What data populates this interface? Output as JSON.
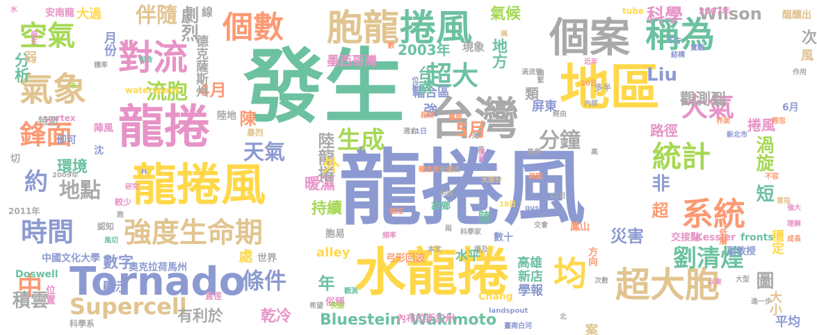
{
  "palette": [
    "#8c9ad1",
    "#6cc1a1",
    "#ffd84a",
    "#e793c7",
    "#a9a9a9",
    "#e1c490",
    "#fb9a73",
    "#a6d854"
  ],
  "words": [
    {
      "text": "龍捲風",
      "color": "#8c9ad1"
    },
    {
      "text": "發生",
      "color": "#6cc1a1"
    },
    {
      "text": "水龍捲",
      "color": "#ffd84a"
    },
    {
      "text": "地區",
      "color": "#ffd84a"
    },
    {
      "text": "台灣",
      "color": "#a9a9a9"
    },
    {
      "text": "龍捲",
      "color": "#e793c7"
    },
    {
      "text": "龍捲風",
      "color": "#ffd84a"
    },
    {
      "text": "Tornado",
      "color": "#8c9ad1"
    },
    {
      "text": "個案",
      "color": "#a9a9a9"
    },
    {
      "text": "胞龍",
      "color": "#e1c490"
    },
    {
      "text": "捲風",
      "color": "#6cc1a1"
    },
    {
      "text": "個數",
      "color": "#fb9a73"
    },
    {
      "text": "氣象",
      "color": "#e1c490"
    },
    {
      "text": "對流",
      "color": "#e793c7"
    },
    {
      "text": "空氣",
      "color": "#a6d854"
    },
    {
      "text": "稱為",
      "color": "#6cc1a1"
    },
    {
      "text": "超大胞",
      "color": "#e1c490"
    },
    {
      "text": "系統",
      "color": "#fb9a73"
    },
    {
      "text": "統計",
      "color": "#a6d854"
    },
    {
      "text": "大氣",
      "color": "#e793c7"
    },
    {
      "text": "強度生命期",
      "color": "#e1c490"
    },
    {
      "text": "時間",
      "color": "#8c9ad1"
    },
    {
      "text": "鋒面",
      "color": "#fb9a73"
    },
    {
      "text": "超大",
      "color": "#6cc1a1"
    },
    {
      "text": "分鐘",
      "color": "#a9a9a9"
    },
    {
      "text": "條件",
      "color": "#8c9ad1"
    },
    {
      "text": "劉清煌",
      "color": "#6cc1a1"
    },
    {
      "text": "均",
      "color": "#ffd84a"
    },
    {
      "text": "天氣",
      "color": "#8c9ad1"
    },
    {
      "text": "地點",
      "color": "#a9a9a9"
    },
    {
      "text": "約",
      "color": "#8c9ad1"
    },
    {
      "text": "生成",
      "color": "#a6d854"
    },
    {
      "text": "流胞",
      "color": "#a6d854"
    },
    {
      "text": "伴隨",
      "color": "#e1c490"
    },
    {
      "text": "科學",
      "color": "#e793c7"
    },
    {
      "text": "Supercell",
      "color": "#e1c490"
    },
    {
      "text": "渦旋",
      "color": "#a6d854"
    },
    {
      "text": "中",
      "color": "#fb9a73"
    },
    {
      "text": "5月",
      "color": "#fb9a73"
    },
    {
      "text": "4月",
      "color": "#fb9a73"
    },
    {
      "text": "短",
      "color": "#6cc1a1"
    },
    {
      "text": "Liu",
      "color": "#8c9ad1"
    },
    {
      "text": "積雲",
      "color": "#a9a9a9"
    },
    {
      "text": "災害",
      "color": "#8c9ad1"
    },
    {
      "text": "年",
      "color": "#6cc1a1"
    },
    {
      "text": "圖",
      "color": "#a9a9a9"
    },
    {
      "text": "超",
      "color": "#fb9a73"
    },
    {
      "text": "觀測到",
      "color": "#a9a9a9"
    },
    {
      "text": "非",
      "color": "#8c9ad1"
    },
    {
      "text": "Wilson",
      "color": "#a9a9a9"
    },
    {
      "text": "Bluestein",
      "color": "#6cc1a1"
    },
    {
      "text": "Wakimoto",
      "color": "#6cc1a1"
    },
    {
      "text": "氣候",
      "color": "#a6d854"
    },
    {
      "text": "暖濕",
      "color": "#e793c7"
    },
    {
      "text": "數字",
      "color": "#8c9ad1"
    },
    {
      "text": "劇烈",
      "color": "#a9a9a9"
    },
    {
      "text": "環境",
      "color": "#6cc1a1"
    },
    {
      "text": "持續",
      "color": "#a6d854"
    },
    {
      "text": "乾冷",
      "color": "#e793c7"
    },
    {
      "text": "大小",
      "color": "#e1c490"
    },
    {
      "text": "有利於",
      "color": "#a9a9a9"
    },
    {
      "text": "2003年",
      "color": "#6cc1a1"
    },
    {
      "text": "捲風",
      "color": "#e793c7"
    },
    {
      "text": "地方",
      "color": "#6cc1a1"
    },
    {
      "text": "alley",
      "color": "#ffd84a"
    },
    {
      "text": "陸龍捲",
      "color": "#a9a9a9"
    },
    {
      "text": "外",
      "color": "#ffd84a"
    },
    {
      "text": "陳",
      "color": "#fb9a73"
    },
    {
      "text": "類",
      "color": "#a9a9a9"
    },
    {
      "text": "高雄",
      "color": "#6cc1a1"
    },
    {
      "text": "新店",
      "color": "#6cc1a1"
    },
    {
      "text": "學報",
      "color": "#8c9ad1"
    },
    {
      "text": "案例",
      "color": "#e1c490"
    },
    {
      "text": "穩定",
      "color": "#ffd84a"
    },
    {
      "text": "路徑",
      "color": "#e793c7"
    },
    {
      "text": "輻合區",
      "color": "#8c9ad1"
    },
    {
      "text": "台南",
      "color": "#6cc1a1"
    },
    {
      "text": "強",
      "color": "#8c9ad1"
    },
    {
      "text": "處",
      "color": "#ffd84a"
    },
    {
      "text": "顯示",
      "color": "#8c9ad1"
    },
    {
      "text": "平均",
      "color": "#8c9ad1"
    },
    {
      "text": "屏東",
      "color": "#8c9ad1"
    },
    {
      "text": "6月",
      "color": "#8c9ad1"
    },
    {
      "text": "月份",
      "color": "#8c9ad1"
    },
    {
      "text": "分析",
      "color": "#6cc1a1"
    },
    {
      "text": "弱",
      "color": "#e1c490"
    },
    {
      "text": "安南龍",
      "color": "#e793c7"
    },
    {
      "text": "大過",
      "color": "#ffd84a"
    },
    {
      "text": "德克薩斯州",
      "color": "#a9a9a9"
    },
    {
      "text": "次",
      "color": "#a9a9a9"
    },
    {
      "text": "風",
      "color": "#e1c490"
    },
    {
      "text": "線",
      "color": "#a9a9a9"
    },
    {
      "text": "醞釀出",
      "color": "#e1c490"
    },
    {
      "text": "現象",
      "color": "#a9a9a9"
    },
    {
      "text": "墨西哥灣",
      "color": "#e793c7"
    },
    {
      "text": "陸",
      "color": "#6cc1a1"
    },
    {
      "text": "水平",
      "color": "#6cc1a1"
    },
    {
      "text": "數十",
      "color": "#8c9ad1"
    },
    {
      "text": "弓形回波",
      "color": "#fb9a73"
    },
    {
      "text": "世界",
      "color": "#a9a9a9"
    },
    {
      "text": "奧克拉荷馬州",
      "color": "#8c9ad1"
    },
    {
      "text": "中國文化大學",
      "color": "#8c9ad1"
    },
    {
      "text": "Doswell",
      "color": "#6cc1a1"
    },
    {
      "text": "位置",
      "color": "#e793c7"
    },
    {
      "text": "切",
      "color": "#a9a9a9"
    },
    {
      "text": "內布拉斯加州",
      "color": "#e793c7"
    },
    {
      "text": "Chang",
      "color": "#ffd84a"
    },
    {
      "text": "fronts",
      "color": "#6cc1a1"
    },
    {
      "text": "Kessler",
      "color": "#e793c7"
    },
    {
      "text": "交接點",
      "color": "#e793c7"
    },
    {
      "text": "副教授",
      "color": "#8c9ad1"
    },
    {
      "text": "方向",
      "color": "#fb9a73"
    },
    {
      "text": "鳳山",
      "color": "#fb9a73"
    },
    {
      "text": "故鄉",
      "color": "#6cc1a1"
    },
    {
      "text": "胞易",
      "color": "#a9a9a9"
    },
    {
      "text": "俗稱",
      "color": "#e793c7"
    },
    {
      "text": "直徑",
      "color": "#e793c7"
    },
    {
      "text": "科學系",
      "color": "#a9a9a9"
    },
    {
      "text": "vortex",
      "color": "#e793c7"
    },
    {
      "text": "waterspout",
      "color": "#ffd84a"
    },
    {
      "text": "gust",
      "color": "#8c9ad1"
    },
    {
      "text": "landspout",
      "color": "#8c9ad1"
    },
    {
      "text": "tube",
      "color": "#ffd84a"
    },
    {
      "text": "2007年",
      "color": "#e793c7"
    },
    {
      "text": "2011年",
      "color": "#a9a9a9"
    },
    {
      "text": "2009年",
      "color": "#a9a9a9"
    },
    {
      "text": "18日",
      "color": "#ffd84a"
    },
    {
      "text": "11日",
      "color": "#8c9ad1"
    },
    {
      "text": "12日",
      "color": "#a9a9a9"
    },
    {
      "text": "20日",
      "color": "#fb9a73"
    },
    {
      "text": "作用",
      "color": "#a9a9a9"
    },
    {
      "text": "不容",
      "color": "#fb9a73"
    },
    {
      "text": "進一步",
      "color": "#a9a9a9"
    },
    {
      "text": "大型",
      "color": "#a9a9a9"
    },
    {
      "text": "成長",
      "color": "#fb9a73"
    },
    {
      "text": "理解",
      "color": "#e793c7"
    },
    {
      "text": "強大",
      "color": "#e793c7"
    },
    {
      "text": "意指",
      "color": "#e1c490"
    },
    {
      "text": "以東",
      "color": "#e793c7"
    },
    {
      "text": "次數",
      "color": "#a9a9a9"
    },
    {
      "text": "低層",
      "color": "#fb9a73"
    },
    {
      "text": "輕忽",
      "color": "#fb9a73"
    },
    {
      "text": "界面",
      "color": "#fb9a73"
    },
    {
      "text": "新北市",
      "color": "#8c9ad1"
    },
    {
      "text": "南來",
      "color": "#a9a9a9"
    },
    {
      "text": "結構",
      "color": "#8c9ad1"
    },
    {
      "text": "下方",
      "color": "#8c9ad1"
    },
    {
      "text": "實驗",
      "color": "#8c9ad1"
    },
    {
      "text": "多半",
      "color": "#a9a9a9"
    },
    {
      "text": "近年",
      "color": "#e793c7"
    },
    {
      "text": "頻繁",
      "color": "#a9a9a9"
    },
    {
      "text": "渦流管",
      "color": "#a9a9a9"
    },
    {
      "text": "稱",
      "color": "#e1c490"
    },
    {
      "text": "適合",
      "color": "#a9a9a9"
    },
    {
      "text": "輻合在一起",
      "color": "#fb9a73"
    },
    {
      "text": "超源",
      "color": "#fb9a73"
    },
    {
      "text": "臺南",
      "color": "#fb9a73"
    },
    {
      "text": "內部",
      "color": "#a9a9a9"
    },
    {
      "text": "經由",
      "color": "#a9a9a9"
    },
    {
      "text": "長",
      "color": "#a9a9a9"
    },
    {
      "text": "大部分",
      "color": "#e1c490"
    },
    {
      "text": "風巷",
      "color": "#a9a9a9"
    },
    {
      "text": "僅有",
      "color": "#e793c7"
    },
    {
      "text": "海",
      "color": "#a9a9a9"
    },
    {
      "text": "高",
      "color": "#a9a9a9"
    },
    {
      "text": "美國",
      "color": "#fb9a73"
    },
    {
      "text": "氣流區",
      "color": "#a9a9a9"
    },
    {
      "text": "中部",
      "color": "#a9a9a9"
    },
    {
      "text": "交會",
      "color": "#a9a9a9"
    },
    {
      "text": "科學家",
      "color": "#a9a9a9"
    },
    {
      "text": "兩",
      "color": "#a9a9a9"
    },
    {
      "text": "抽拉",
      "color": "#fb9a73"
    },
    {
      "text": "頻率",
      "color": "#e793c7"
    },
    {
      "text": "本文",
      "color": "#a9a9a9"
    },
    {
      "text": "提及",
      "color": "#a9a9a9"
    },
    {
      "text": "觀測",
      "color": "#6cc1a1"
    },
    {
      "text": "快速",
      "color": "#a6d854"
    },
    {
      "text": "臺南白河",
      "color": "#8c9ad1"
    },
    {
      "text": "希望",
      "color": "#a9a9a9"
    },
    {
      "text": "北",
      "color": "#a9a9a9"
    },
    {
      "text": "位於",
      "color": "#8c9ad1"
    },
    {
      "text": "數",
      "color": "#fb9a73"
    },
    {
      "text": "陸地",
      "color": "#a9a9a9"
    },
    {
      "text": "暴烈",
      "color": "#e1c490"
    },
    {
      "text": "特別",
      "color": "#a9a9a9"
    },
    {
      "text": "陣風",
      "color": "#e793c7"
    },
    {
      "text": "即可",
      "color": "#8c9ad1"
    },
    {
      "text": "沈",
      "color": "#8c9ad1"
    },
    {
      "text": "未",
      "color": "#a6d854"
    },
    {
      "text": "包含",
      "color": "#6cc1a1"
    },
    {
      "text": "H",
      "color": "#8c9ad1"
    },
    {
      "text": "研究",
      "color": "#e793c7"
    },
    {
      "text": "較少",
      "color": "#e793c7"
    },
    {
      "text": "胞",
      "color": "#a9a9a9"
    },
    {
      "text": "認知",
      "color": "#a9a9a9"
    },
    {
      "text": "風切",
      "color": "#6cc1a1"
    },
    {
      "text": "積率",
      "color": "#a9a9a9"
    },
    {
      "text": "誕生",
      "color": "#e793c7"
    },
    {
      "text": "水",
      "color": "#e793c7"
    },
    {
      "text": "分布",
      "color": "#a9a9a9"
    }
  ]
}
